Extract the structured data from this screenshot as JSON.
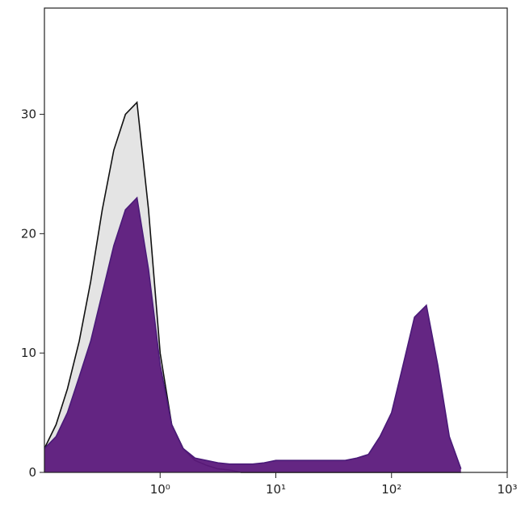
{
  "chart_data": {
    "type": "area",
    "x": [
      0.1,
      0.126,
      0.158,
      0.2,
      0.251,
      0.316,
      0.398,
      0.501,
      0.631,
      0.794,
      1,
      1.26,
      1.58,
      2,
      2.51,
      3.16,
      3.98,
      5.01,
      6.31,
      7.94,
      10,
      12.6,
      15.8,
      20,
      25.1,
      31.6,
      39.8,
      50.1,
      63.1,
      79.4,
      100,
      126,
      158,
      200,
      251,
      316,
      398
    ],
    "series": [
      {
        "color": "#111111",
        "fill": "#e4e4e4",
        "values": [
          2,
          4,
          7,
          11,
          16,
          22,
          27,
          30,
          31,
          22,
          10,
          4,
          2,
          1,
          0.6,
          0.3,
          0.2,
          0,
          0,
          0,
          0,
          0,
          0,
          0,
          0,
          0,
          0,
          0,
          0,
          0,
          0,
          0,
          0,
          0,
          0,
          0,
          0
        ]
      },
      {
        "color": "#4a1a78",
        "fill": "#5c1a7c",
        "values": [
          2,
          3,
          5,
          8,
          11,
          15,
          19,
          22,
          23,
          17,
          9,
          4,
          2,
          1.2,
          1,
          0.8,
          0.7,
          0.7,
          0.7,
          0.8,
          1,
          1,
          1,
          1,
          1,
          1,
          1,
          1.2,
          1.5,
          3,
          5,
          9,
          13,
          14,
          9,
          3,
          0.3
        ]
      }
    ],
    "log_x": true,
    "xlim": [
      0.1,
      1000
    ],
    "xticks": [
      {
        "value": 1,
        "label": "10⁰"
      },
      {
        "value": 10,
        "label": "10¹"
      },
      {
        "value": 100,
        "label": "10²"
      },
      {
        "value": 1000,
        "label": "10³"
      }
    ],
    "ylim": [
      0,
      38.9
    ],
    "yticks": [
      0,
      10,
      20,
      30
    ]
  }
}
